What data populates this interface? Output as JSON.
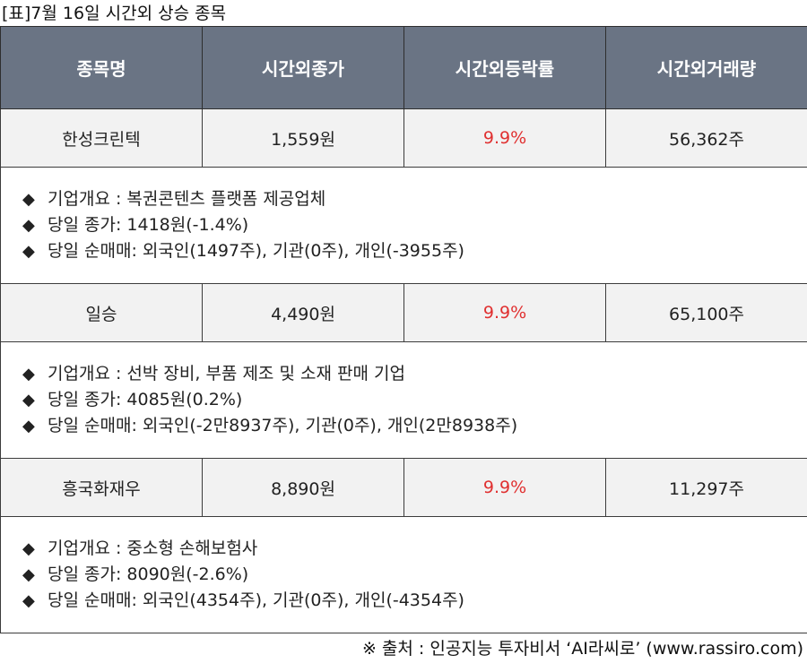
{
  "caption": "[표]7월 16일 시간외 상승 종목",
  "headers": [
    "종목명",
    "시간외종가",
    "시간외등락률",
    "시간외거래량"
  ],
  "bullet": "◆",
  "rows": [
    {
      "name": "한성크린텍",
      "close": "1,559원",
      "rate": "9.9%",
      "volume": "56,362주",
      "details": [
        "기업개요 : 복권콘텐츠 플랫폼 제공업체",
        "당일 종가: 1418원(-1.4%)",
        "당일 순매매: 외국인(1497주), 기관(0주), 개인(-3955주)"
      ]
    },
    {
      "name": "일승",
      "close": "4,490원",
      "rate": "9.9%",
      "volume": "65,100주",
      "details": [
        "기업개요 : 선박 장비, 부품 제조 및 소재 판매 기업",
        "당일 종가: 4085원(0.2%)",
        "당일 순매매: 외국인(-2만8937주), 기관(0주), 개인(2만8938주)"
      ]
    },
    {
      "name": "흥국화재우",
      "close": "8,890원",
      "rate": "9.9%",
      "volume": "11,297주",
      "details": [
        "기업개요 : 중소형 손해보험사",
        "당일 종가: 8090원(-2.6%)",
        "당일 순매매: 외국인(4354주), 기관(0주), 개인(-4354주)"
      ]
    }
  ],
  "source": "※ 출처 : 인공지능 투자비서 ‘AI라씨로’ (www.rassiro.com)",
  "colors": {
    "header_bg": "#6a7484",
    "row_bg": "#f2f2f2",
    "rate_text": "#e03030"
  }
}
